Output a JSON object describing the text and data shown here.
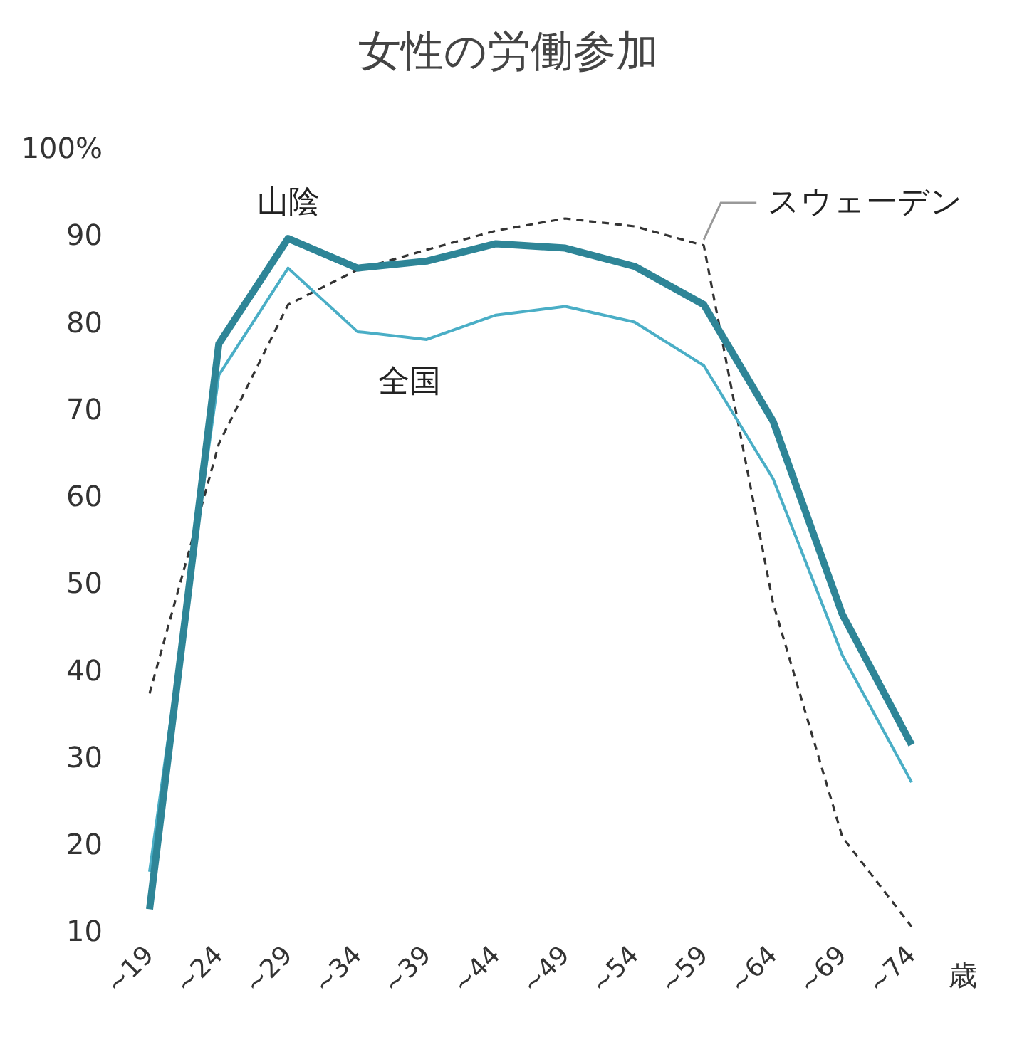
{
  "chart_data": {
    "type": "line",
    "title": "女性の労働参加",
    "xlabel": "歳",
    "categories": [
      "~19",
      "~24",
      "~29",
      "~34",
      "~39",
      "~44",
      "~49",
      "~54",
      "~59",
      "~64",
      "~69",
      "~74"
    ],
    "series": [
      {
        "name": "スウェーデン",
        "color": "#333333",
        "line_style": "dashed",
        "values": [
          37.3,
          66,
          82,
          86,
          88.3,
          90.5,
          91.9,
          91,
          88.8,
          47.7,
          20.8,
          10.5
        ]
      },
      {
        "name": "全国",
        "color": "#4aaec6",
        "values": [
          16.8,
          73.9,
          86.2,
          78.9,
          78,
          80.8,
          81.8,
          80,
          75,
          62,
          41.7,
          27.1
        ]
      },
      {
        "name": "山陰",
        "color": "#2e8597",
        "values": [
          12.5,
          77.5,
          89.6,
          86.2,
          87,
          89,
          88.5,
          86.4,
          82,
          68.6,
          46.4,
          31.4
        ]
      }
    ],
    "ylim": [
      10,
      100
    ],
    "yticks": [
      10,
      20,
      30,
      40,
      50,
      60,
      70,
      80,
      90,
      {
        "value": 100,
        "label": "100%"
      }
    ],
    "grid": false,
    "legend": false,
    "marker": "none"
  }
}
